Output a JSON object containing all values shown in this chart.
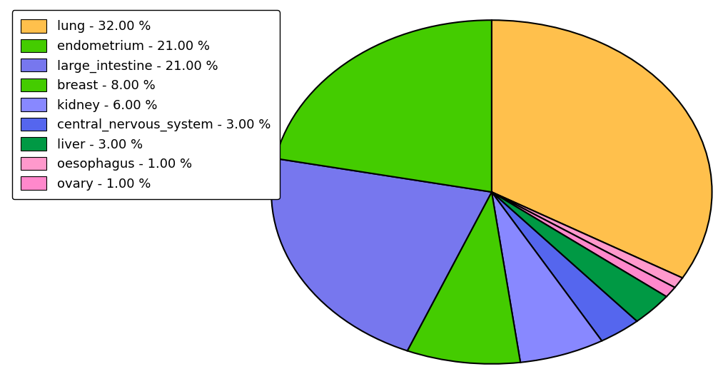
{
  "labels": [
    "lung - 32.00 %",
    "endometrium - 21.00 %",
    "large_intestine - 21.00 %",
    "breast - 8.00 %",
    "kidney - 6.00 %",
    "central_nervous_system - 3.00 %",
    "liver - 3.00 %",
    "oesophagus - 1.00 %",
    "ovary - 1.00 %"
  ],
  "values": [
    32,
    21,
    21,
    8,
    6,
    3,
    3,
    1,
    1
  ],
  "colors": [
    "#FFC04C",
    "#44CC00",
    "#7777EE",
    "#44CC00",
    "#8888FF",
    "#5566EE",
    "#009944",
    "#FF99CC",
    "#FF88CC"
  ],
  "pie_order": [
    0,
    7,
    8,
    6,
    5,
    4,
    3,
    2,
    1
  ],
  "figsize": [
    10.13,
    5.38
  ],
  "dpi": 100,
  "legend_fontsize": 13,
  "ellipse_yscale": 0.78
}
